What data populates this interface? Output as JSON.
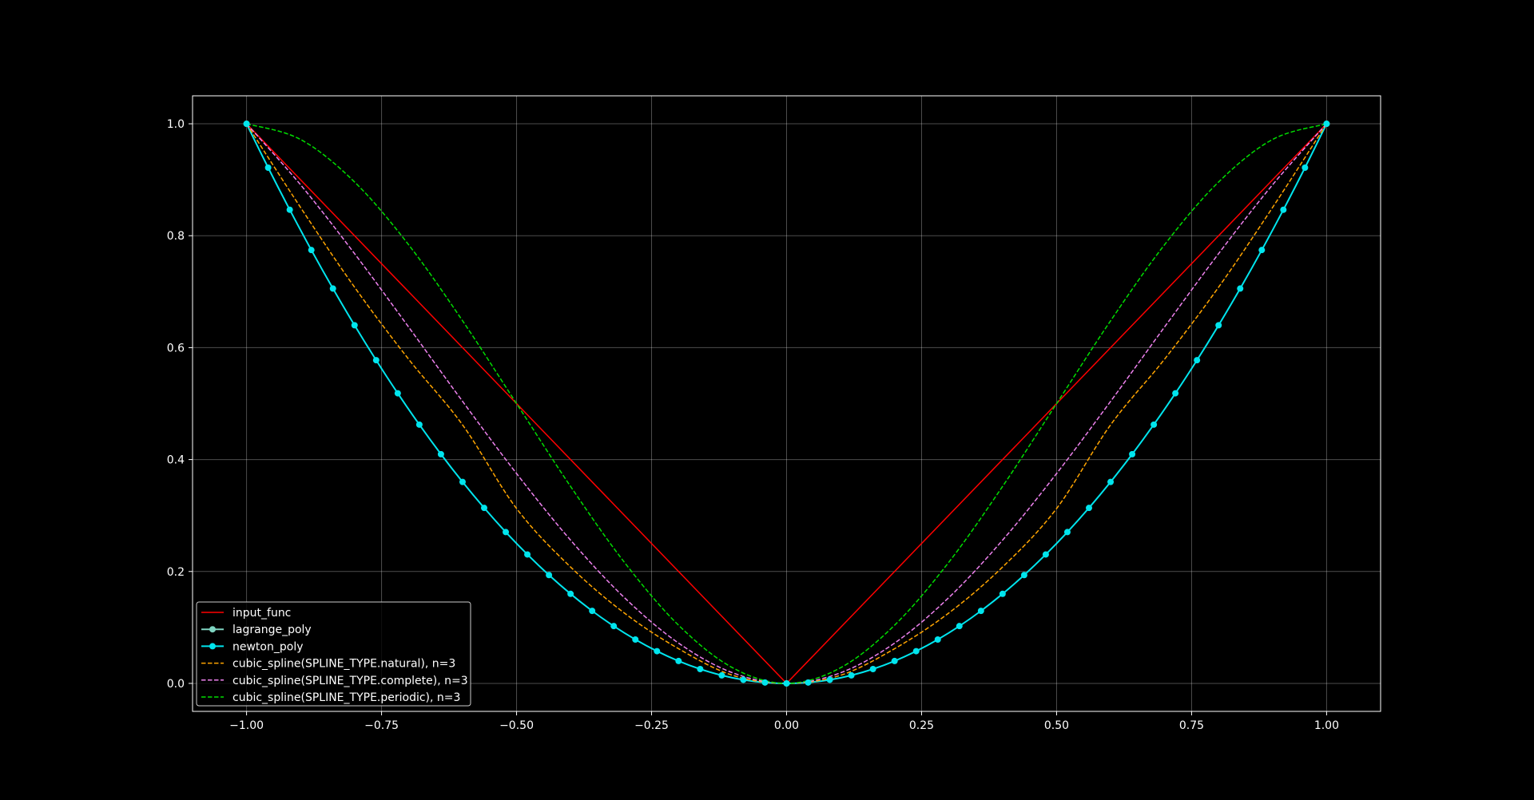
{
  "chart_data": {
    "type": "line",
    "title": "",
    "xlabel": "",
    "ylabel": "",
    "xlim": [
      -1.1,
      1.1
    ],
    "ylim": [
      -0.05,
      1.05
    ],
    "grid": true,
    "x_ticks": [
      -1.0,
      -0.75,
      -0.5,
      -0.25,
      0.0,
      0.25,
      0.5,
      0.75,
      1.0
    ],
    "x_tick_labels": [
      "−1.00",
      "−0.75",
      "−0.50",
      "−0.25",
      "0.00",
      "0.25",
      "0.50",
      "0.75",
      "1.00"
    ],
    "y_ticks": [
      0.0,
      0.2,
      0.4,
      0.6,
      0.8,
      1.0
    ],
    "y_tick_labels": [
      "0.0",
      "0.2",
      "0.4",
      "0.6",
      "0.8",
      "1.0"
    ],
    "legend_position": "lower-left",
    "series": [
      {
        "name": "input_func",
        "color": "#ff0000",
        "style": "solid",
        "marker": false,
        "x": [
          -1.0,
          0.0,
          1.0
        ],
        "y": [
          1.0,
          0.0,
          1.0
        ]
      },
      {
        "name": "lagrange_poly",
        "color": "#7fd4c1",
        "style": "solid",
        "marker": true,
        "x": [
          -1.0,
          0.0,
          1.0
        ],
        "y": [
          1.0,
          0.0,
          1.0
        ]
      },
      {
        "name": "newton_poly",
        "color": "#00e5ee",
        "style": "solid",
        "marker": true,
        "x": [
          -1.0,
          -0.96,
          -0.92,
          -0.88,
          -0.84,
          -0.8,
          -0.76,
          -0.72,
          -0.68,
          -0.64,
          -0.6,
          -0.56,
          -0.52,
          -0.48,
          -0.44,
          -0.4,
          -0.36,
          -0.32,
          -0.28,
          -0.24,
          -0.2,
          -0.16,
          -0.12,
          -0.08,
          -0.04,
          0.0,
          0.04,
          0.08,
          0.12,
          0.16,
          0.2,
          0.24,
          0.28,
          0.32,
          0.36,
          0.4,
          0.44,
          0.48,
          0.52,
          0.56,
          0.6,
          0.64,
          0.68,
          0.72,
          0.76,
          0.8,
          0.84,
          0.88,
          0.92,
          0.96,
          1.0
        ],
        "y": [
          1.0,
          0.9216,
          0.8464,
          0.7744,
          0.7056,
          0.64,
          0.5776,
          0.5184,
          0.4624,
          0.4096,
          0.36,
          0.3136,
          0.2704,
          0.2304,
          0.1936,
          0.16,
          0.1296,
          0.1024,
          0.0784,
          0.0576,
          0.04,
          0.0256,
          0.0144,
          0.0064,
          0.0016,
          0.0,
          0.0016,
          0.0064,
          0.0144,
          0.0256,
          0.04,
          0.0576,
          0.0784,
          0.1024,
          0.1296,
          0.16,
          0.1936,
          0.2304,
          0.2704,
          0.3136,
          0.36,
          0.4096,
          0.4624,
          0.5184,
          0.5776,
          0.64,
          0.7056,
          0.7744,
          0.8464,
          0.9216,
          1.0
        ]
      },
      {
        "name": "cubic_spline(SPLINE_TYPE.natural), n=3",
        "color": "#ffa500",
        "style": "dashed",
        "marker": false,
        "x": [
          -1.0,
          -0.9,
          -0.8,
          -0.7,
          -0.6,
          -0.5,
          -0.4,
          -0.3,
          -0.2,
          -0.1,
          0.0,
          0.1,
          0.2,
          0.3,
          0.4,
          0.5,
          0.6,
          0.7,
          0.8,
          0.9,
          1.0
        ],
        "y": [
          1.0,
          0.8505,
          0.708,
          0.5795,
          0.462,
          0.3125,
          0.208,
          0.1255,
          0.062,
          0.0145,
          0.0,
          0.0145,
          0.062,
          0.1255,
          0.208,
          0.3125,
          0.462,
          0.5795,
          0.708,
          0.8505,
          1.0
        ]
      },
      {
        "name": "cubic_spline(SPLINE_TYPE.complete), n=3",
        "color": "#ee82ee",
        "style": "dashed",
        "marker": false,
        "x": [
          -1.0,
          -0.9,
          -0.8,
          -0.7,
          -0.6,
          -0.5,
          -0.4,
          -0.3,
          -0.2,
          -0.1,
          0.0,
          0.1,
          0.2,
          0.3,
          0.4,
          0.5,
          0.6,
          0.7,
          0.8,
          0.9,
          1.0
        ],
        "y": [
          1.0,
          0.891,
          0.768,
          0.637,
          0.504,
          0.375,
          0.256,
          0.153,
          0.072,
          0.019,
          0.0,
          0.019,
          0.072,
          0.153,
          0.256,
          0.375,
          0.504,
          0.637,
          0.768,
          0.891,
          1.0
        ]
      },
      {
        "name": "cubic_spline(SPLINE_TYPE.periodic), n=3",
        "color": "#00dd00",
        "style": "dashed",
        "marker": false,
        "x": [
          -1.0,
          -0.9,
          -0.8,
          -0.7,
          -0.6,
          -0.5,
          -0.4,
          -0.3,
          -0.2,
          -0.1,
          0.0,
          0.1,
          0.2,
          0.3,
          0.4,
          0.5,
          0.6,
          0.7,
          0.8,
          0.9,
          1.0
        ],
        "y": [
          1.0,
          0.972,
          0.896,
          0.784,
          0.648,
          0.5,
          0.352,
          0.216,
          0.104,
          0.028,
          0.0,
          0.028,
          0.104,
          0.216,
          0.352,
          0.5,
          0.648,
          0.784,
          0.896,
          0.972,
          1.0
        ]
      }
    ]
  }
}
